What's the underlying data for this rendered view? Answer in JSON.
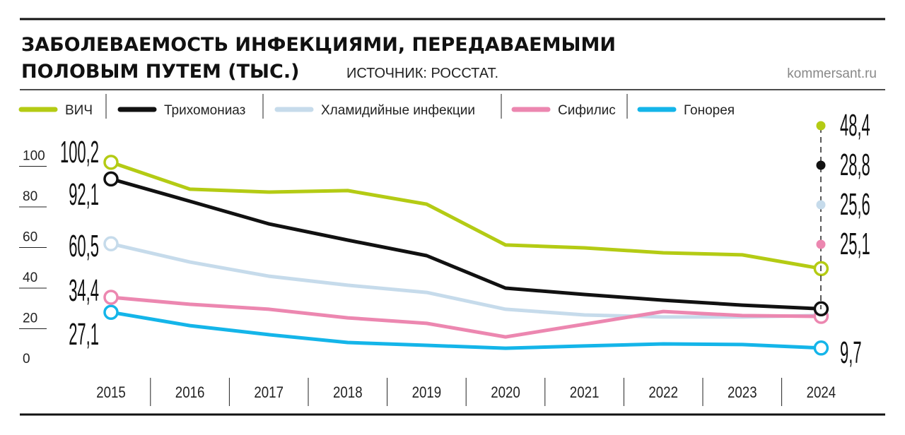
{
  "header": {
    "title_line1": "ЗАБОЛЕВАЕМОСТЬ ИНФЕКЦИЯМИ, ПЕРЕДАВАЕМЫМИ",
    "title_line2": "ПОЛОВЫМ ПУТЕМ (ТЫС.)",
    "source": "ИСТОЧНИК: РОССТАТ.",
    "site": "kommersant.ru"
  },
  "chart_data": {
    "type": "line",
    "title": "ЗАБОЛЕВАЕМОСТЬ ИНФЕКЦИЯМИ, ПЕРЕДАВАЕМЫМИ ПОЛОВЫМ ПУТЕМ (ТЫС.)",
    "x": [
      "2015",
      "2016",
      "2017",
      "2018",
      "2019",
      "2020",
      "2021",
      "2022",
      "2023",
      "2024"
    ],
    "ylim": [
      0,
      100
    ],
    "yticks": [
      "0",
      "20",
      "40",
      "60",
      "80",
      "100"
    ],
    "legend_position": "top",
    "grid": false,
    "series": [
      {
        "name": "ВИЧ",
        "color": "#b4cb14",
        "values": [
          100.2,
          87.1,
          85.7,
          86.4,
          79.8,
          59.9,
          58.5,
          56.1,
          55.1,
          48.4
        ],
        "start_label": "100,2",
        "end_label": "48,4"
      },
      {
        "name": "Трихомониаз",
        "color": "#111111",
        "values": [
          92.1,
          81.2,
          70.2,
          62.3,
          54.7,
          38.9,
          35.8,
          33.0,
          30.6,
          28.8
        ],
        "start_label": "92,1",
        "end_label": "28,8"
      },
      {
        "name": "Хламидийные инфекции",
        "color": "#c6dbeb",
        "values": [
          60.5,
          51.6,
          44.7,
          40.3,
          36.8,
          28.6,
          25.8,
          24.8,
          24.8,
          25.6
        ],
        "start_label": "60,5",
        "end_label": "25,6"
      },
      {
        "name": "Сифилис",
        "color": "#ec87b0",
        "values": [
          34.4,
          31.0,
          28.6,
          24.4,
          21.7,
          15.1,
          21.3,
          27.5,
          25.5,
          25.1
        ],
        "start_label": "34,4",
        "end_label": "25,1"
      },
      {
        "name": "Гонорея",
        "color": "#14b5e9",
        "values": [
          27.1,
          20.6,
          16.2,
          12.4,
          11.0,
          9.6,
          10.7,
          11.7,
          11.4,
          9.7
        ],
        "start_label": "27,1",
        "end_label": "9,7"
      }
    ]
  }
}
